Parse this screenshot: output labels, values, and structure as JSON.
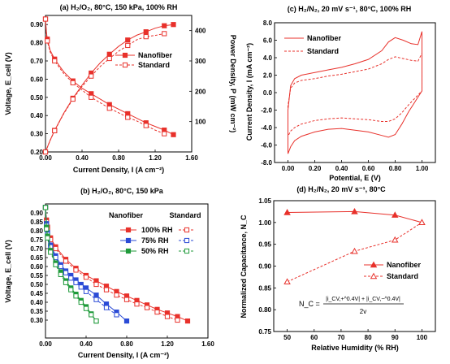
{
  "colors": {
    "red": "#e8312b",
    "blue": "#2b4bd6",
    "green": "#1f9a3a",
    "axis": "#000000",
    "grid": "#d9d9d9"
  },
  "chart_data": [
    {
      "id": "a",
      "type": "line",
      "title": "(a) H₂/O₂, 80°C, 150 kPa, 100% RH",
      "xlabel": "Current Density, I (A cm⁻²)",
      "ylabel": "Voltage, E_cell (V)",
      "ylabel2": "Power Density, P (mW cm⁻²)",
      "xlim": [
        0,
        1.6
      ],
      "ylim": [
        0.2,
        0.95
      ],
      "y2lim": [
        0,
        450
      ],
      "xticks": [
        "0.00",
        "0.40",
        "0.80",
        "1.20",
        "1.60"
      ],
      "yticks": [
        "0.20",
        "0.30",
        "0.40",
        "0.50",
        "0.60",
        "0.70",
        "0.80",
        "0.90"
      ],
      "y2ticks": [
        "100",
        "200",
        "300",
        "400"
      ],
      "legend": [
        "Nanofiber",
        "Standard"
      ],
      "series": [
        {
          "name": "Nanofiber",
          "axis": "left",
          "style": "solid",
          "marker": "filled-square",
          "x": [
            0,
            0.01,
            0.02,
            0.05,
            0.1,
            0.2,
            0.3,
            0.4,
            0.5,
            0.6,
            0.7,
            0.8,
            0.9,
            1.0,
            1.1,
            1.2,
            1.3,
            1.4
          ],
          "y": [
            0.93,
            0.86,
            0.82,
            0.76,
            0.71,
            0.64,
            0.59,
            0.55,
            0.52,
            0.49,
            0.46,
            0.435,
            0.41,
            0.385,
            0.36,
            0.34,
            0.32,
            0.295
          ]
        },
        {
          "name": "Standard",
          "axis": "left",
          "style": "dashed",
          "marker": "open-square",
          "x": [
            0,
            0.01,
            0.02,
            0.05,
            0.1,
            0.2,
            0.3,
            0.4,
            0.5,
            0.6,
            0.7,
            0.8,
            0.9,
            1.0,
            1.1,
            1.2,
            1.3
          ],
          "y": [
            0.93,
            0.85,
            0.81,
            0.75,
            0.7,
            0.63,
            0.58,
            0.54,
            0.5,
            0.47,
            0.44,
            0.415,
            0.39,
            0.37,
            0.345,
            0.32,
            0.3
          ]
        },
        {
          "name": "Nanofiber",
          "axis": "right",
          "style": "solid",
          "marker": "filled-square",
          "x": [
            0,
            0.05,
            0.1,
            0.2,
            0.3,
            0.4,
            0.5,
            0.6,
            0.7,
            0.8,
            0.9,
            1.0,
            1.1,
            1.2,
            1.3,
            1.4
          ],
          "y": [
            0,
            38,
            71,
            128,
            177,
            220,
            260,
            294,
            322,
            348,
            369,
            385,
            396,
            408,
            416,
            420
          ]
        },
        {
          "name": "Standard",
          "axis": "right",
          "style": "dashed",
          "marker": "open-square",
          "x": [
            0,
            0.05,
            0.1,
            0.2,
            0.3,
            0.4,
            0.5,
            0.6,
            0.7,
            0.8,
            0.9,
            1.0,
            1.1,
            1.2,
            1.3
          ],
          "y": [
            0,
            37,
            70,
            126,
            174,
            216,
            250,
            282,
            308,
            332,
            351,
            370,
            380,
            384,
            390
          ]
        }
      ]
    },
    {
      "id": "b",
      "type": "line",
      "title": "(b) H₂/O₂, 80°C, 150 kPa",
      "xlabel": "Current Density, I (A cm⁻²)",
      "ylabel": "Voltage, E_cell (V)",
      "xlim": [
        0,
        1.6
      ],
      "ylim": [
        0.2,
        0.95
      ],
      "xticks": [
        "0.00",
        "0.40",
        "0.80",
        "1.20",
        "1.60"
      ],
      "yticks": [
        "0.30",
        "0.35",
        "0.40",
        "0.45",
        "0.50",
        "0.55",
        "0.60",
        "0.65",
        "0.70",
        "0.75",
        "0.80",
        "0.85",
        "0.90"
      ],
      "legend_headers": [
        "Nanofiber",
        "Standard"
      ],
      "legend": [
        "100% RH",
        "75% RH",
        "50% RH"
      ],
      "series": [
        {
          "name": "100% RH",
          "group": "Nanofiber",
          "color": "red",
          "style": "solid",
          "marker": "filled-square",
          "x": [
            0,
            0.01,
            0.02,
            0.05,
            0.1,
            0.2,
            0.3,
            0.4,
            0.5,
            0.6,
            0.7,
            0.8,
            0.9,
            1.0,
            1.1,
            1.2,
            1.3,
            1.4
          ],
          "y": [
            0.93,
            0.86,
            0.82,
            0.76,
            0.71,
            0.64,
            0.59,
            0.55,
            0.52,
            0.49,
            0.46,
            0.435,
            0.41,
            0.385,
            0.36,
            0.34,
            0.32,
            0.295
          ]
        },
        {
          "name": "100% RH",
          "group": "Standard",
          "color": "red",
          "style": "dashed",
          "marker": "open-square",
          "x": [
            0,
            0.01,
            0.02,
            0.05,
            0.1,
            0.2,
            0.3,
            0.4,
            0.5,
            0.6,
            0.7,
            0.8,
            0.9,
            1.0,
            1.1,
            1.2,
            1.3
          ],
          "y": [
            0.93,
            0.85,
            0.81,
            0.75,
            0.7,
            0.63,
            0.58,
            0.54,
            0.5,
            0.47,
            0.44,
            0.415,
            0.39,
            0.37,
            0.345,
            0.32,
            0.3
          ]
        },
        {
          "name": "75% RH",
          "group": "Nanofiber",
          "color": "blue",
          "style": "solid",
          "marker": "filled-square",
          "x": [
            0,
            0.01,
            0.02,
            0.05,
            0.1,
            0.15,
            0.2,
            0.25,
            0.3,
            0.35,
            0.4,
            0.5,
            0.6,
            0.7,
            0.8
          ],
          "y": [
            0.93,
            0.84,
            0.79,
            0.72,
            0.66,
            0.61,
            0.575,
            0.55,
            0.525,
            0.5,
            0.48,
            0.44,
            0.39,
            0.345,
            0.295
          ]
        },
        {
          "name": "75% RH",
          "group": "Standard",
          "color": "blue",
          "style": "dashed",
          "marker": "open-square",
          "x": [
            0,
            0.01,
            0.02,
            0.05,
            0.1,
            0.15,
            0.2,
            0.25,
            0.3,
            0.35,
            0.4,
            0.5,
            0.6,
            0.7
          ],
          "y": [
            0.93,
            0.83,
            0.78,
            0.71,
            0.65,
            0.6,
            0.565,
            0.535,
            0.51,
            0.485,
            0.46,
            0.415,
            0.37,
            0.33
          ]
        },
        {
          "name": "50% RH",
          "group": "Nanofiber",
          "color": "green",
          "style": "solid",
          "marker": "filled-square",
          "x": [
            0,
            0.01,
            0.02,
            0.05,
            0.1,
            0.15,
            0.2,
            0.25,
            0.3,
            0.35,
            0.4,
            0.45,
            0.5
          ],
          "y": [
            0.93,
            0.82,
            0.77,
            0.69,
            0.62,
            0.57,
            0.52,
            0.48,
            0.445,
            0.41,
            0.375,
            0.335,
            0.295
          ]
        },
        {
          "name": "50% RH",
          "group": "Standard",
          "color": "green",
          "style": "dashed",
          "marker": "open-square",
          "x": [
            0,
            0.01,
            0.02,
            0.05,
            0.1,
            0.15,
            0.2,
            0.25,
            0.3,
            0.35,
            0.4,
            0.45,
            0.5
          ],
          "y": [
            0.93,
            0.81,
            0.76,
            0.68,
            0.61,
            0.555,
            0.51,
            0.47,
            0.435,
            0.4,
            0.365,
            0.33,
            0.295
          ]
        }
      ]
    },
    {
      "id": "c",
      "type": "line",
      "title": "(c) H₂/N₂, 20 mV s⁻¹, 80°C, 100% RH",
      "xlabel": "Potential, E (V)",
      "ylabel": "Current Density, I (mA cm⁻²)",
      "xlim": [
        -0.1,
        1.1
      ],
      "ylim": [
        -8,
        8
      ],
      "xticks": [
        "0.00",
        "0.20",
        "0.40",
        "0.60",
        "0.80",
        "1.00"
      ],
      "yticks": [
        "-8.0",
        "-6.0",
        "-4.0",
        "-2.0",
        "0.0",
        "2.0",
        "4.0",
        "6.0",
        "8.0"
      ],
      "legend": [
        "Nanofiber",
        "Standard"
      ],
      "series": [
        {
          "name": "Nanofiber",
          "style": "solid",
          "x": [
            0,
            0.0,
            0.02,
            0.05,
            0.1,
            0.2,
            0.3,
            0.4,
            0.5,
            0.6,
            0.7,
            0.75,
            0.8,
            0.86,
            0.92,
            0.97,
            1.0,
            1.0,
            0.95,
            0.9,
            0.85,
            0.8,
            0.75,
            0.7,
            0.6,
            0.5,
            0.4,
            0.3,
            0.2,
            0.1,
            0.05,
            0.02,
            0.0
          ],
          "y": [
            -7.0,
            -2.0,
            0.8,
            1.6,
            2.0,
            2.3,
            2.6,
            2.9,
            3.3,
            3.8,
            4.8,
            5.8,
            6.3,
            6.0,
            5.6,
            5.5,
            7.0,
            0.2,
            -1.0,
            -2.2,
            -3.6,
            -4.8,
            -5.1,
            -4.9,
            -4.5,
            -4.3,
            -4.1,
            -4.2,
            -4.5,
            -5.0,
            -5.5,
            -6.2,
            -7.0
          ]
        },
        {
          "name": "Standard",
          "style": "dashed",
          "x": [
            0,
            0.0,
            0.02,
            0.05,
            0.1,
            0.2,
            0.3,
            0.4,
            0.5,
            0.6,
            0.7,
            0.75,
            0.8,
            0.86,
            0.92,
            0.97,
            1.0,
            1.0,
            0.95,
            0.9,
            0.85,
            0.8,
            0.75,
            0.7,
            0.6,
            0.5,
            0.4,
            0.3,
            0.2,
            0.1,
            0.05,
            0.02,
            0.0
          ],
          "y": [
            -5.0,
            -1.5,
            0.5,
            1.1,
            1.4,
            1.6,
            1.9,
            2.1,
            2.4,
            2.7,
            3.3,
            3.8,
            4.1,
            3.9,
            3.7,
            3.6,
            4.5,
            0.2,
            -0.6,
            -1.4,
            -2.3,
            -3.0,
            -3.3,
            -3.3,
            -3.1,
            -3.0,
            -2.9,
            -3.0,
            -3.2,
            -3.6,
            -4.0,
            -4.4,
            -5.0
          ]
        }
      ]
    },
    {
      "id": "d",
      "type": "line",
      "title": "(d) H₂/N₂, 20 mV s⁻¹, 80°C",
      "xlabel": "Relative Humidity (% RH)",
      "ylabel": "Normalized Capacitance, N_C",
      "xlim": [
        45,
        105
      ],
      "ylim": [
        0.75,
        1.05
      ],
      "xticks": [
        "50",
        "60",
        "70",
        "80",
        "90",
        "100"
      ],
      "yticks": [
        "0.75",
        "0.80",
        "0.85",
        "0.90",
        "0.95",
        "1.00",
        "1.05"
      ],
      "legend": [
        "Nanofiber",
        "Standard"
      ],
      "series": [
        {
          "name": "Nanofiber",
          "style": "solid",
          "marker": "filled-triangle",
          "x": [
            50,
            75,
            90,
            100
          ],
          "y": [
            1.023,
            1.025,
            1.017,
            1.0
          ]
        },
        {
          "name": "Standard",
          "style": "dashed",
          "marker": "open-triangle",
          "x": [
            50,
            75,
            90,
            100
          ],
          "y": [
            0.864,
            0.934,
            0.96,
            1.0
          ]
        }
      ],
      "equation": {
        "lhs": "N_C =",
        "numerator": "|i_CV,+^0.4V| + |i_CV,−^0.4V|",
        "denominator": "2v"
      }
    }
  ]
}
